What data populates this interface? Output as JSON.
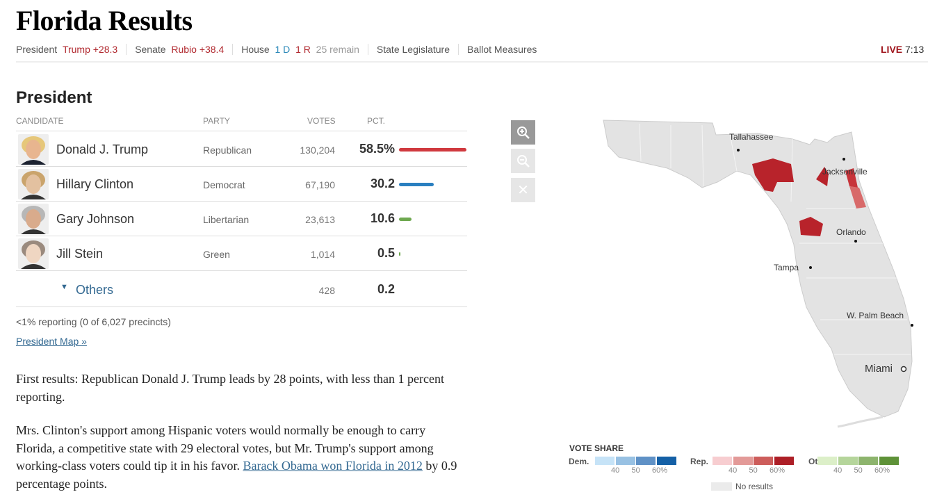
{
  "title": "Florida Results",
  "nav": {
    "president_label": "President",
    "president_leader": "Trump +28.3",
    "senate_label": "Senate",
    "senate_leader": "Rubio +38.4",
    "house_label": "House",
    "house_d": "1 D",
    "house_r": "1 R",
    "house_remain": "25 remain",
    "state_leg": "State Legislature",
    "ballot": "Ballot Measures",
    "live": "LIVE",
    "time": "7:13"
  },
  "section_title": "President",
  "table": {
    "headers": {
      "candidate": "CANDIDATE",
      "party": "PARTY",
      "votes": "VOTES",
      "pct": "PCT."
    },
    "rows": [
      {
        "name": "Donald J. Trump",
        "party": "Republican",
        "votes": "130,204",
        "pct": "58.5%",
        "pct_value": 58.5,
        "color": "#d0393e"
      },
      {
        "name": "Hillary Clinton",
        "party": "Democrat",
        "votes": "67,190",
        "pct": "30.2",
        "pct_value": 30.2,
        "color": "#2a7fc0"
      },
      {
        "name": "Gary Johnson",
        "party": "Libertarian",
        "votes": "23,613",
        "pct": "10.6",
        "pct_value": 10.6,
        "color": "#6ea84f"
      },
      {
        "name": "Jill Stein",
        "party": "Green",
        "votes": "1,014",
        "pct": "0.5",
        "pct_value": 0.5,
        "color": "#6ea84f"
      }
    ],
    "others": {
      "label": "Others",
      "votes": "428",
      "pct": "0.2"
    }
  },
  "reporting": "<1% reporting (0 of 6,027 precincts)",
  "president_map_link": "President Map »",
  "para1": "First results: Republican Donald J. Trump leads by 28 points, with less than 1 percent reporting.",
  "para2_start": "Mrs. Clinton's support among Hispanic voters would normally be enough to carry Florida, a competitive state with 29 electoral votes, but Mr. Trump's support among working-class voters could tip it in his favor. ",
  "para2_link": "Barack Obama won Florida in 2012",
  "para2_end": " by 0.9 percentage points.",
  "map": {
    "cities": [
      "Tallahassee",
      "Jacksonville",
      "Orlando",
      "Tampa",
      "W. Palm Beach",
      "Miami"
    ]
  },
  "legend": {
    "title": "VOTE SHARE",
    "dem": "Dem.",
    "rep": "Rep.",
    "other": "Other",
    "ticks": [
      "40",
      "50",
      "60%"
    ],
    "no_results": "No results",
    "dem_colors": [
      "#c6e3f7",
      "#98c1e3",
      "#5f91c6",
      "#1460a6"
    ],
    "rep_colors": [
      "#f7cdd0",
      "#e39a98",
      "#cd5d5b",
      "#ad1f27"
    ],
    "other_colors": [
      "#dcefc8",
      "#b5d59b",
      "#8db46d",
      "#5e9238"
    ]
  }
}
